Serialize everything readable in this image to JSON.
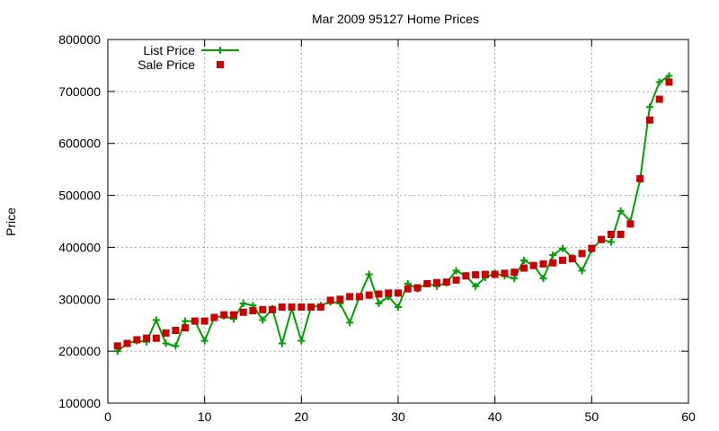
{
  "chart_data": {
    "type": "line",
    "title": "Mar 2009 95127 Home Prices",
    "xlabel": "",
    "ylabel": "Price",
    "xlim": [
      0,
      60
    ],
    "ylim": [
      100000,
      800000
    ],
    "x_ticks": [
      0,
      10,
      20,
      30,
      40,
      50,
      60
    ],
    "y_ticks": [
      100000,
      200000,
      300000,
      400000,
      500000,
      600000,
      700000,
      800000
    ],
    "x_tick_labels": [
      "0",
      "10",
      "20",
      "30",
      "40",
      "50",
      "60"
    ],
    "y_tick_labels": [
      "100000",
      "200000",
      "300000",
      "400000",
      "500000",
      "600000",
      "700000",
      "800000"
    ],
    "grid": true,
    "legend_position": "top-left",
    "series": [
      {
        "name": "List Price",
        "style": "line-with-plus-markers",
        "color": "#00a000",
        "x": [
          1,
          2,
          3,
          4,
          5,
          6,
          7,
          8,
          9,
          10,
          11,
          12,
          13,
          14,
          15,
          16,
          17,
          18,
          19,
          20,
          21,
          22,
          23,
          24,
          25,
          26,
          27,
          28,
          29,
          30,
          31,
          32,
          33,
          34,
          35,
          36,
          37,
          38,
          39,
          40,
          41,
          42,
          43,
          44,
          45,
          46,
          47,
          48,
          49,
          50,
          51,
          52,
          53,
          54,
          55,
          56,
          57,
          58
        ],
        "values": [
          200000,
          215000,
          220000,
          218000,
          260000,
          215000,
          210000,
          258000,
          258000,
          220000,
          265000,
          268000,
          262000,
          292000,
          288000,
          260000,
          282000,
          215000,
          282000,
          220000,
          285000,
          288000,
          295000,
          292000,
          255000,
          305000,
          348000,
          292000,
          305000,
          285000,
          330000,
          320000,
          330000,
          325000,
          332000,
          355000,
          345000,
          325000,
          342000,
          350000,
          345000,
          340000,
          375000,
          365000,
          340000,
          385000,
          398000,
          380000,
          355000,
          395000,
          415000,
          410000,
          470000,
          450000,
          530000,
          670000,
          718000,
          730000
        ]
      },
      {
        "name": "Sale Price",
        "style": "square-markers",
        "color": "#cc0000",
        "x": [
          1,
          2,
          3,
          4,
          5,
          6,
          7,
          8,
          9,
          10,
          11,
          12,
          13,
          14,
          15,
          16,
          17,
          18,
          19,
          20,
          21,
          22,
          23,
          24,
          25,
          26,
          27,
          28,
          29,
          30,
          31,
          32,
          33,
          34,
          35,
          36,
          37,
          38,
          39,
          40,
          41,
          42,
          43,
          44,
          45,
          46,
          47,
          48,
          49,
          50,
          51,
          52,
          53,
          54,
          55,
          56,
          57,
          58
        ],
        "values": [
          210000,
          215000,
          222000,
          225000,
          225000,
          235000,
          240000,
          245000,
          258000,
          258000,
          265000,
          270000,
          270000,
          275000,
          278000,
          280000,
          280000,
          285000,
          285000,
          285000,
          285000,
          285000,
          298000,
          300000,
          305000,
          305000,
          308000,
          310000,
          312000,
          312000,
          320000,
          322000,
          330000,
          332000,
          333000,
          337000,
          345000,
          347000,
          348000,
          348000,
          350000,
          352000,
          360000,
          365000,
          368000,
          370000,
          375000,
          378000,
          388000,
          398000,
          415000,
          425000,
          425000,
          445000,
          532000,
          645000,
          685000,
          718000
        ]
      }
    ]
  }
}
